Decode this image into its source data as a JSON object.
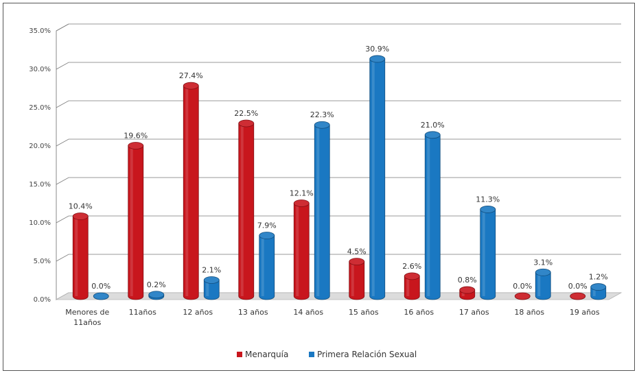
{
  "chart_data": {
    "type": "bar",
    "title": "",
    "xlabel": "",
    "ylabel": "",
    "ylim": [
      0,
      35
    ],
    "yticks": [
      "0.0%",
      "5.0%",
      "10.0%",
      "15.0%",
      "20.0%",
      "25.0%",
      "30.0%",
      "35.0%"
    ],
    "grid": true,
    "legend_position": "bottom",
    "categories": [
      [
        "Menores de",
        "11años"
      ],
      [
        "11años"
      ],
      [
        "12 años"
      ],
      [
        "13 años"
      ],
      [
        "14 años"
      ],
      [
        "15 años"
      ],
      [
        "16 años"
      ],
      [
        "17 años"
      ],
      [
        "18 años"
      ],
      [
        "19 años"
      ]
    ],
    "series": [
      {
        "name": "Menarquía",
        "color": "#c8161d",
        "values": [
          10.4,
          19.6,
          27.4,
          22.5,
          12.1,
          4.5,
          2.6,
          0.8,
          0.0,
          0.0
        ],
        "labels": [
          "10.4%",
          "19.6%",
          "27.4%",
          "22.5%",
          "12.1%",
          "4.5%",
          "2.6%",
          "0.8%",
          "0.0%",
          "0.0%"
        ]
      },
      {
        "name": "Primera Relación Sexual",
        "color": "#1a78c2",
        "values": [
          0.0,
          0.2,
          2.1,
          7.9,
          22.3,
          30.9,
          21.0,
          11.3,
          3.1,
          1.2
        ],
        "labels": [
          "0.0%",
          "0.2%",
          "2.1%",
          "7.9%",
          "22.3%",
          "30.9%",
          "21.0%",
          "11.3%",
          "3.1%",
          "1.2%"
        ]
      }
    ]
  }
}
